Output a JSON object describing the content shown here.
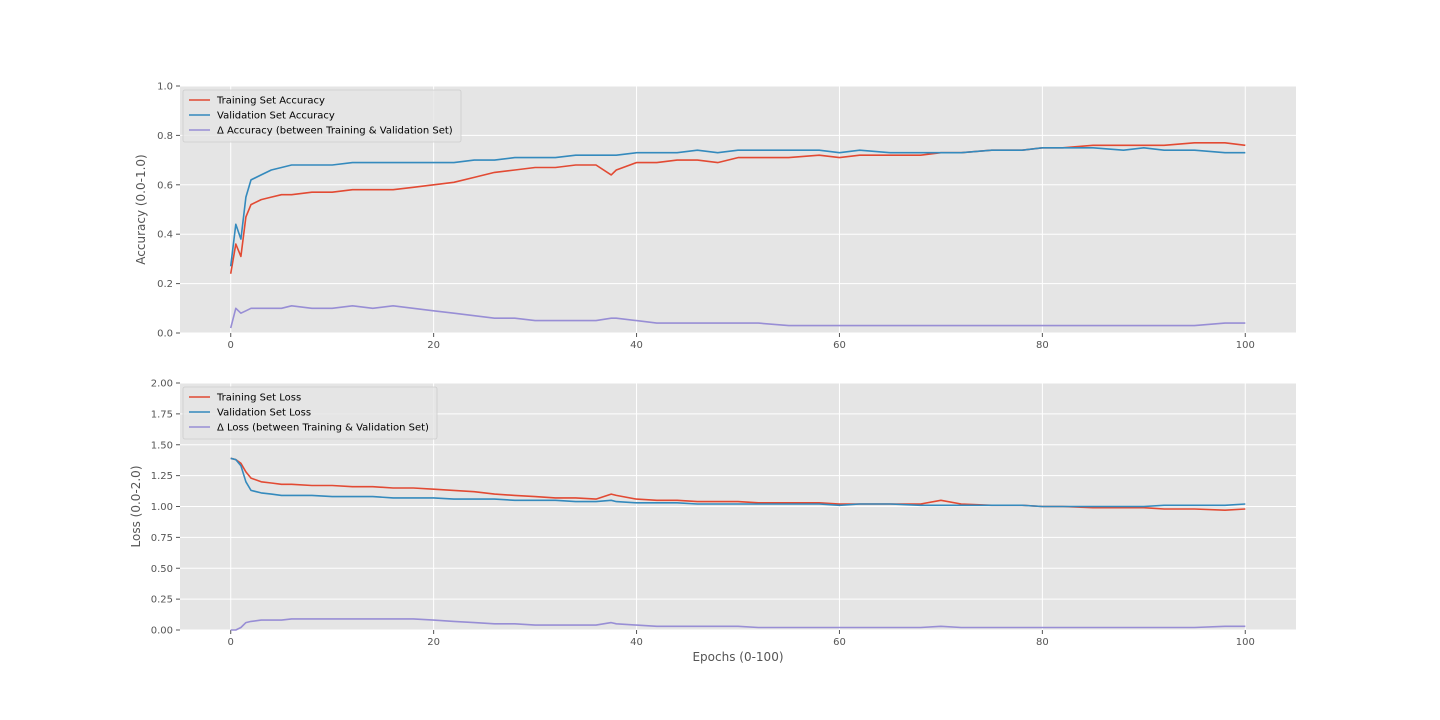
{
  "chart_data": [
    {
      "type": "line",
      "title": "",
      "xlabel": "",
      "ylabel": "Accuracy (0.0-1.0)",
      "xlim": [
        -5,
        105
      ],
      "ylim": [
        0.0,
        1.0
      ],
      "xticks": [
        0,
        20,
        40,
        60,
        80,
        100
      ],
      "xtick_labels": [
        "0",
        "20",
        "40",
        "60",
        "80",
        "100"
      ],
      "yticks": [
        0.0,
        0.2,
        0.4,
        0.6,
        0.8,
        1.0
      ],
      "ytick_labels": [
        "0.0",
        "0.2",
        "0.4",
        "0.6",
        "0.8",
        "1.0"
      ],
      "grid": true,
      "legend_position": "top-left",
      "x": [
        0,
        0.5,
        1,
        1.5,
        2,
        3,
        4,
        5,
        6,
        8,
        10,
        12,
        14,
        16,
        18,
        20,
        22,
        24,
        26,
        28,
        30,
        32,
        34,
        36,
        37.5,
        38,
        40,
        42,
        44,
        46,
        48,
        50,
        52,
        55,
        58,
        60,
        62,
        65,
        68,
        70,
        72,
        75,
        78,
        80,
        82,
        85,
        88,
        90,
        92,
        95,
        98,
        100
      ],
      "series": [
        {
          "name": "Training Set Accuracy",
          "color": "#E24A33",
          "values": [
            0.24,
            0.36,
            0.31,
            0.47,
            0.52,
            0.54,
            0.55,
            0.56,
            0.56,
            0.57,
            0.57,
            0.58,
            0.58,
            0.58,
            0.59,
            0.6,
            0.61,
            0.63,
            0.65,
            0.66,
            0.67,
            0.67,
            0.68,
            0.68,
            0.64,
            0.66,
            0.69,
            0.69,
            0.7,
            0.7,
            0.69,
            0.71,
            0.71,
            0.71,
            0.72,
            0.71,
            0.72,
            0.72,
            0.72,
            0.73,
            0.73,
            0.74,
            0.74,
            0.75,
            0.75,
            0.76,
            0.76,
            0.76,
            0.76,
            0.77,
            0.77,
            0.76
          ]
        },
        {
          "name": "Validation Set Accuracy",
          "color": "#348ABD",
          "values": [
            0.27,
            0.44,
            0.38,
            0.55,
            0.62,
            0.64,
            0.66,
            0.67,
            0.68,
            0.68,
            0.68,
            0.69,
            0.69,
            0.69,
            0.69,
            0.69,
            0.69,
            0.7,
            0.7,
            0.71,
            0.71,
            0.71,
            0.72,
            0.72,
            0.72,
            0.72,
            0.73,
            0.73,
            0.73,
            0.74,
            0.73,
            0.74,
            0.74,
            0.74,
            0.74,
            0.73,
            0.74,
            0.73,
            0.73,
            0.73,
            0.73,
            0.74,
            0.74,
            0.75,
            0.75,
            0.75,
            0.74,
            0.75,
            0.74,
            0.74,
            0.73,
            0.73
          ]
        },
        {
          "name": "Δ Accuracy (between Training & Validation Set)",
          "color": "#988ED5",
          "values": [
            0.02,
            0.1,
            0.08,
            0.09,
            0.1,
            0.1,
            0.1,
            0.1,
            0.11,
            0.1,
            0.1,
            0.11,
            0.1,
            0.11,
            0.1,
            0.09,
            0.08,
            0.07,
            0.06,
            0.06,
            0.05,
            0.05,
            0.05,
            0.05,
            0.06,
            0.06,
            0.05,
            0.04,
            0.04,
            0.04,
            0.04,
            0.04,
            0.04,
            0.03,
            0.03,
            0.03,
            0.03,
            0.03,
            0.03,
            0.03,
            0.03,
            0.03,
            0.03,
            0.03,
            0.03,
            0.03,
            0.03,
            0.03,
            0.03,
            0.03,
            0.04,
            0.04
          ]
        }
      ]
    },
    {
      "type": "line",
      "title": "",
      "xlabel": "Epochs (0-100)",
      "ylabel": "Loss (0.0-2.0)",
      "xlim": [
        -5,
        105
      ],
      "ylim": [
        0.0,
        2.0
      ],
      "xticks": [
        0,
        20,
        40,
        60,
        80,
        100
      ],
      "xtick_labels": [
        "0",
        "20",
        "40",
        "60",
        "80",
        "100"
      ],
      "yticks": [
        0.0,
        0.25,
        0.5,
        0.75,
        1.0,
        1.25,
        1.5,
        1.75,
        2.0
      ],
      "ytick_labels": [
        "0.00",
        "0.25",
        "0.50",
        "0.75",
        "1.00",
        "1.25",
        "1.50",
        "1.75",
        "2.00"
      ],
      "grid": true,
      "legend_position": "top-left",
      "x": [
        0,
        0.5,
        1,
        1.5,
        2,
        3,
        4,
        5,
        6,
        8,
        10,
        12,
        14,
        16,
        18,
        20,
        22,
        24,
        26,
        28,
        30,
        32,
        34,
        36,
        37.5,
        38,
        40,
        42,
        44,
        46,
        48,
        50,
        52,
        55,
        58,
        60,
        62,
        65,
        68,
        70,
        72,
        75,
        78,
        80,
        82,
        85,
        88,
        90,
        92,
        95,
        98,
        100
      ],
      "series": [
        {
          "name": "Training Set Loss",
          "color": "#E24A33",
          "values": [
            1.39,
            1.38,
            1.35,
            1.28,
            1.23,
            1.2,
            1.19,
            1.18,
            1.18,
            1.17,
            1.17,
            1.16,
            1.16,
            1.15,
            1.15,
            1.14,
            1.13,
            1.12,
            1.1,
            1.09,
            1.08,
            1.07,
            1.07,
            1.06,
            1.1,
            1.09,
            1.06,
            1.05,
            1.05,
            1.04,
            1.04,
            1.04,
            1.03,
            1.03,
            1.03,
            1.02,
            1.02,
            1.02,
            1.02,
            1.05,
            1.02,
            1.01,
            1.01,
            1.0,
            1.0,
            0.99,
            0.99,
            0.99,
            0.98,
            0.98,
            0.97,
            0.98
          ]
        },
        {
          "name": "Validation Set Loss",
          "color": "#348ABD",
          "values": [
            1.39,
            1.38,
            1.33,
            1.2,
            1.13,
            1.11,
            1.1,
            1.09,
            1.09,
            1.09,
            1.08,
            1.08,
            1.08,
            1.07,
            1.07,
            1.07,
            1.06,
            1.06,
            1.06,
            1.05,
            1.05,
            1.05,
            1.04,
            1.04,
            1.05,
            1.04,
            1.03,
            1.03,
            1.03,
            1.02,
            1.02,
            1.02,
            1.02,
            1.02,
            1.02,
            1.01,
            1.02,
            1.02,
            1.01,
            1.01,
            1.01,
            1.01,
            1.01,
            1.0,
            1.0,
            1.0,
            1.0,
            1.0,
            1.01,
            1.01,
            1.01,
            1.02
          ]
        },
        {
          "name": "Δ Loss (between Training & Validation Set)",
          "color": "#988ED5",
          "values": [
            0.0,
            0.0,
            0.02,
            0.06,
            0.07,
            0.08,
            0.08,
            0.08,
            0.09,
            0.09,
            0.09,
            0.09,
            0.09,
            0.09,
            0.09,
            0.08,
            0.07,
            0.06,
            0.05,
            0.05,
            0.04,
            0.04,
            0.04,
            0.04,
            0.06,
            0.05,
            0.04,
            0.03,
            0.03,
            0.03,
            0.03,
            0.03,
            0.02,
            0.02,
            0.02,
            0.02,
            0.02,
            0.02,
            0.02,
            0.03,
            0.02,
            0.02,
            0.02,
            0.02,
            0.02,
            0.02,
            0.02,
            0.02,
            0.02,
            0.02,
            0.03,
            0.03
          ]
        }
      ]
    }
  ]
}
